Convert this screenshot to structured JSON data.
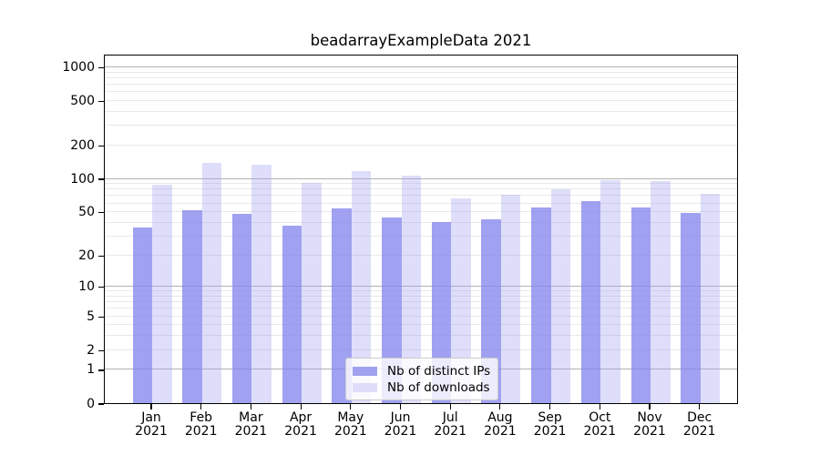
{
  "chart_data": {
    "type": "bar",
    "title": "beadarrayExampleData 2021",
    "categories": [
      "Jan 2021",
      "Feb 2021",
      "Mar 2021",
      "Apr 2021",
      "May 2021",
      "Jun 2021",
      "Jul 2021",
      "Aug 2021",
      "Sep 2021",
      "Oct 2021",
      "Nov 2021",
      "Dec 2021"
    ],
    "series": [
      {
        "name": "Nb of distinct IPs",
        "color": "#a1a1f1",
        "values": [
          36,
          52,
          48,
          37,
          54,
          44,
          40,
          43,
          55,
          63,
          55,
          49
        ]
      },
      {
        "name": "Nb of downloads",
        "color": "#dedefa",
        "values": [
          88,
          137,
          133,
          92,
          116,
          107,
          66,
          71,
          80,
          96,
          94,
          73
        ]
      }
    ],
    "yscale": "log1p",
    "yticks": [
      0,
      1,
      2,
      5,
      10,
      20,
      50,
      100,
      200,
      500,
      1000
    ],
    "ylim": [
      0,
      1340
    ],
    "grid": true,
    "legend_position": "lower center",
    "colors": {
      "bar_ips": "#a1a1f1",
      "bar_downloads": "#dedefa",
      "gridline_major": "#b2b2b2",
      "gridline_minor": "#e9e9e9",
      "axis": "#000000"
    }
  }
}
